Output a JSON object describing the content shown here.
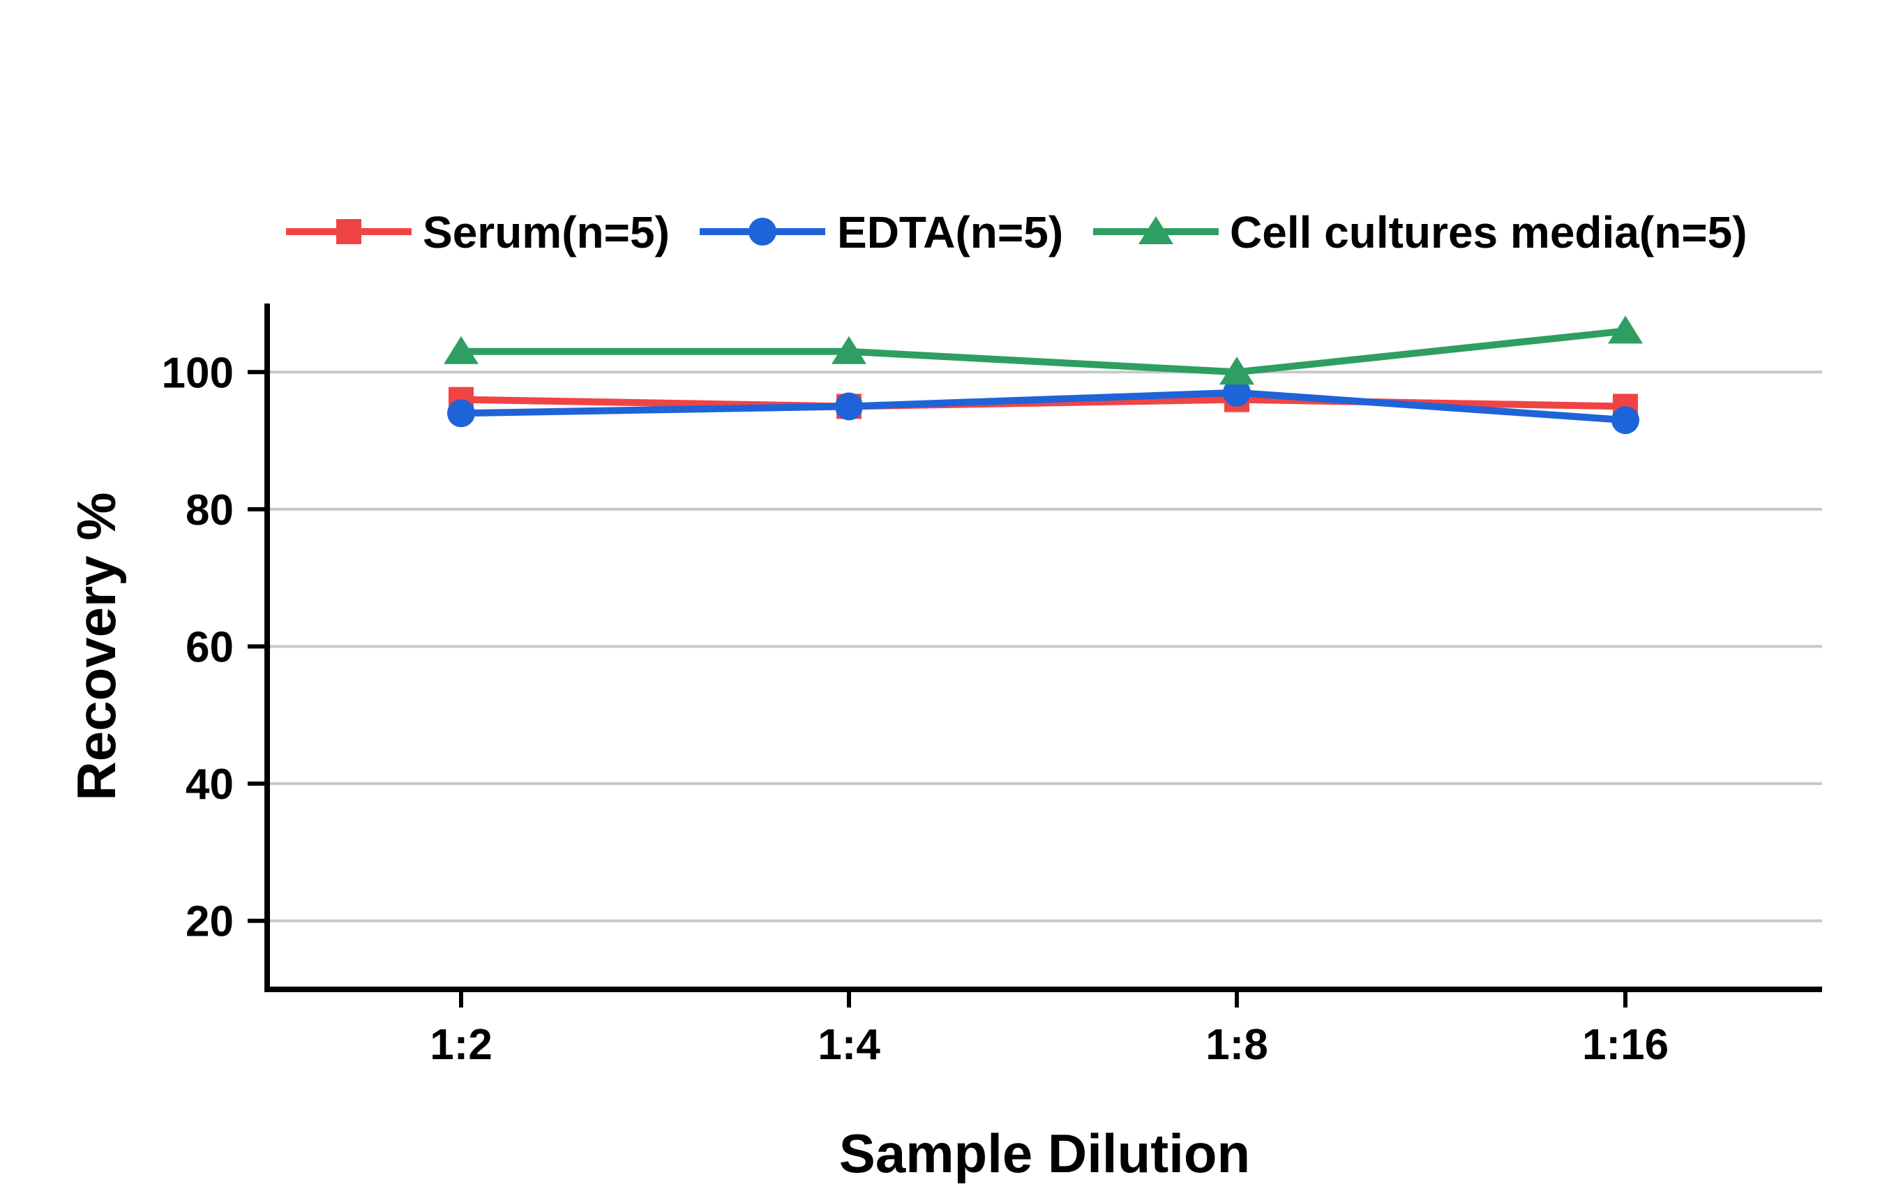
{
  "chart_data": {
    "type": "line",
    "categories": [
      "1:2",
      "1:4",
      "1:8",
      "1:16"
    ],
    "series": [
      {
        "name": "Serum(n=5)",
        "values": [
          96,
          95,
          96,
          95
        ],
        "color": "#f04444",
        "marker": "square"
      },
      {
        "name": "EDTA(n=5)",
        "values": [
          94,
          95,
          97,
          93
        ],
        "color": "#1f63d8",
        "marker": "circle"
      },
      {
        "name": "Cell cultures media(n=5)",
        "values": [
          103,
          103,
          100,
          106
        ],
        "color": "#2e9e62",
        "marker": "triangle"
      }
    ],
    "xlabel": "Sample Dilution",
    "ylabel": "Recovery %",
    "ylim": [
      10,
      110
    ],
    "yticks": [
      20,
      40,
      60,
      80,
      100
    ],
    "grid": "horizontal",
    "legend_position": "top"
  }
}
